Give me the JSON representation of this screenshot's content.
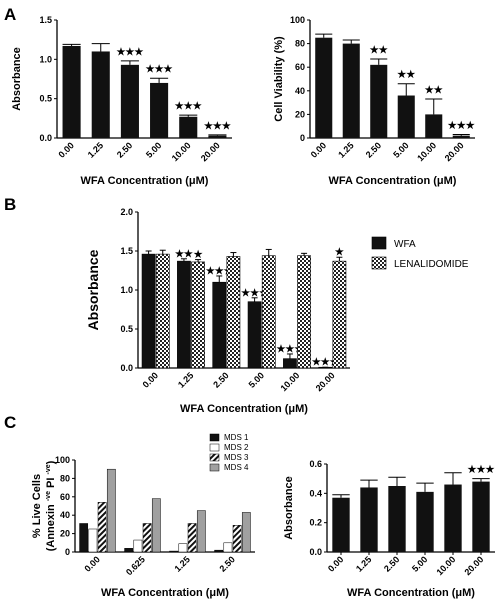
{
  "panels": {
    "a": "A",
    "b": "B",
    "c": "C"
  },
  "chart_data": [
    {
      "id": "A1",
      "type": "bar",
      "categories": [
        "0.00",
        "1.25",
        "2.50",
        "5.00",
        "10.00",
        "20.00"
      ],
      "values": [
        1.17,
        1.1,
        0.93,
        0.7,
        0.27,
        0.03
      ],
      "errors": [
        0.02,
        0.1,
        0.05,
        0.06,
        0.02,
        0.01
      ],
      "stars": [
        "",
        "",
        "★★★",
        "★★★",
        "★★★",
        "★★★"
      ],
      "ylim": [
        0,
        1.5
      ],
      "yticks": [
        "0.0",
        "0.5",
        "1.0",
        "1.5"
      ],
      "ylabel": "Absorbance",
      "xlabel": "WFA Concentration (μM)",
      "colors": {
        "bar": "#111111"
      }
    },
    {
      "id": "A2",
      "type": "bar",
      "categories": [
        "0.00",
        "1.25",
        "2.50",
        "5.00",
        "10.00",
        "20.00"
      ],
      "values": [
        85,
        80,
        62,
        36,
        20,
        2
      ],
      "errors": [
        3,
        3,
        5,
        10,
        13,
        1
      ],
      "stars": [
        "",
        "",
        "★★",
        "★★",
        "★★",
        "★★★"
      ],
      "ylim": [
        0,
        100
      ],
      "yticks": [
        "0",
        "20",
        "40",
        "60",
        "80",
        "100"
      ],
      "ylabel": "Cell Viability (%)",
      "xlabel": "WFA Concentration (μM)",
      "colors": {
        "bar": "#111111"
      }
    },
    {
      "id": "B",
      "type": "bar",
      "categories": [
        "0.00",
        "1.25",
        "2.50",
        "5.00",
        "10.00",
        "20.00"
      ],
      "series": [
        {
          "name": "WFA",
          "values": [
            1.46,
            1.37,
            1.1,
            0.85,
            0.12,
            0.01
          ],
          "errors": [
            0.04,
            0.03,
            0.08,
            0.05,
            0.06,
            0.0
          ],
          "stars": [
            "",
            "★★",
            "★★★",
            "★★★",
            "★★★",
            "★★★"
          ]
        },
        {
          "name": "LENALIDOMIDE",
          "values": [
            1.46,
            1.36,
            1.43,
            1.44,
            1.44,
            1.37
          ],
          "errors": [
            0.05,
            0.03,
            0.05,
            0.08,
            0.03,
            0.05
          ],
          "stars": [
            "",
            "★",
            "",
            "",
            "",
            "★"
          ]
        }
      ],
      "ylim": [
        0,
        2.0
      ],
      "yticks": [
        "0.0",
        "0.5",
        "1.0",
        "1.5",
        "2.0"
      ],
      "ylabel": "Absorbance",
      "xlabel": "WFA Concentration (μM)",
      "legend": "top-right",
      "colors": {
        "wfa": "#111111",
        "lenalidomide": "checkered"
      }
    },
    {
      "id": "C1",
      "type": "bar",
      "categories": [
        "0.00",
        "0.625",
        "1.25",
        "2.50"
      ],
      "series": [
        {
          "name": "MDS 1",
          "values": [
            31,
            4,
            1,
            2
          ]
        },
        {
          "name": "MDS 2",
          "values": [
            25,
            13,
            9,
            10
          ]
        },
        {
          "name": "MDS 3",
          "values": [
            54,
            31,
            31,
            29
          ]
        },
        {
          "name": "MDS 4",
          "values": [
            90,
            58,
            45,
            43
          ]
        }
      ],
      "ylim": [
        0,
        100
      ],
      "yticks": [
        "0",
        "20",
        "40",
        "60",
        "80",
        "100"
      ],
      "ylabel_line1": "% Live Cells",
      "ylabel_line2": "(Annexin ",
      "ylabel_sup1": "-ve",
      "ylabel_mid": " PI ",
      "ylabel_sup2": "-ve",
      "ylabel_end": ")",
      "xlabel": "WFA Concentration (μM)",
      "legend": "top-right",
      "colors": {
        "MDS 1": "#111111",
        "MDS 2": "#ffffff",
        "MDS 3": "hatched",
        "MDS 4": "#a0a0a0"
      }
    },
    {
      "id": "C2",
      "type": "bar",
      "categories": [
        "0.00",
        "1.25",
        "2.50",
        "5.00",
        "10.00",
        "20.00"
      ],
      "values": [
        0.37,
        0.44,
        0.45,
        0.41,
        0.46,
        0.48
      ],
      "errors": [
        0.02,
        0.05,
        0.06,
        0.06,
        0.08,
        0.02
      ],
      "stars": [
        "",
        "",
        "",
        "",
        "",
        "★★★"
      ],
      "ylim": [
        0,
        0.6
      ],
      "yticks": [
        "0.0",
        "0.2",
        "0.4",
        "0.6"
      ],
      "ylabel": "Absorbance",
      "xlabel": "WFA Concentration (μM)",
      "colors": {
        "bar": "#111111"
      }
    }
  ]
}
